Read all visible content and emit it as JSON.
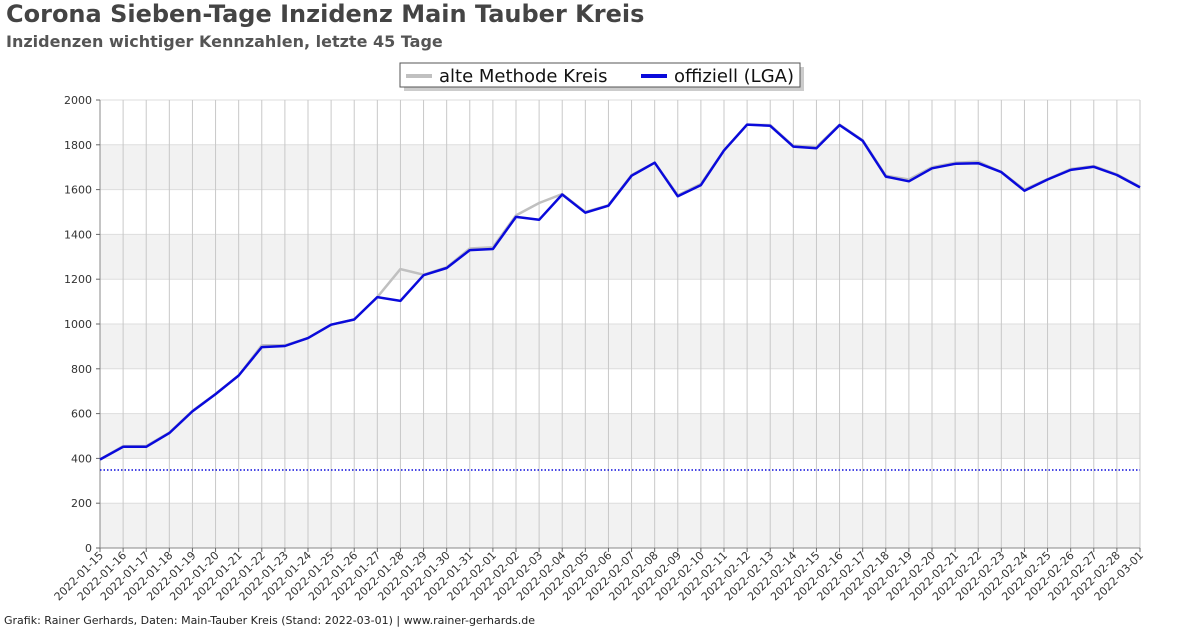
{
  "header": {
    "title": "Corona Sieben-Tage Inzidenz Main Tauber Kreis",
    "subtitle": "Inzidenzen wichtiger Kennzahlen, letzte 45 Tage"
  },
  "footer": {
    "text": "Grafik: Rainer Gerhards, Daten: Main-Tauber Kreis (Stand: 2022-03-01) | www.rainer-gerhards.de"
  },
  "chart_data": {
    "type": "line",
    "title": "Corona Sieben-Tage Inzidenz Main Tauber Kreis",
    "subtitle": "Inzidenzen wichtiger Kennzahlen, letzte 45 Tage",
    "xlabel": "",
    "ylabel": "",
    "ylim": [
      0,
      2000
    ],
    "yticks": [
      0,
      200,
      400,
      600,
      800,
      1000,
      1200,
      1400,
      1600,
      1800,
      2000
    ],
    "grid": true,
    "legend_position": "top-center",
    "categories": [
      "2022-01-15",
      "2022-01-16",
      "2022-01-17",
      "2022-01-18",
      "2022-01-19",
      "2022-01-20",
      "2022-01-21",
      "2022-01-22",
      "2022-01-23",
      "2022-01-24",
      "2022-01-25",
      "2022-01-26",
      "2022-01-27",
      "2022-01-28",
      "2022-01-29",
      "2022-01-30",
      "2022-01-31",
      "2022-02-01",
      "2022-02-02",
      "2022-02-03",
      "2022-02-04",
      "2022-02-05",
      "2022-02-06",
      "2022-02-07",
      "2022-02-08",
      "2022-02-09",
      "2022-02-10",
      "2022-02-11",
      "2022-02-12",
      "2022-02-13",
      "2022-02-14",
      "2022-02-15",
      "2022-02-16",
      "2022-02-17",
      "2022-02-18",
      "2022-02-19",
      "2022-02-20",
      "2022-02-21",
      "2022-02-22",
      "2022-02-23",
      "2022-02-24",
      "2022-02-25",
      "2022-02-26",
      "2022-02-27",
      "2022-02-28",
      "2022-03-01"
    ],
    "series": [
      {
        "name": "alte Methode Kreis",
        "color": "#c0c0c0",
        "values": [
          395,
          455,
          455,
          515,
          612,
          688,
          770,
          905,
          905,
          937,
          997,
          1020,
          1120,
          1245,
          1220,
          1253,
          1337,
          1343,
          1485,
          1540,
          1580,
          1500,
          1530,
          1665,
          1720,
          1575,
          1625,
          1775,
          1890,
          1888,
          1795,
          1790,
          1890,
          1820,
          1662,
          1645,
          1700,
          1720,
          1725,
          1678,
          1600,
          1647,
          1692,
          1705,
          1668,
          1612
        ]
      },
      {
        "name": "offiziell (LGA)",
        "color": "#0a0adb",
        "values": [
          395,
          452,
          452,
          513,
          610,
          687,
          770,
          897,
          902,
          937,
          997,
          1020,
          1120,
          1103,
          1218,
          1250,
          1330,
          1335,
          1478,
          1465,
          1578,
          1497,
          1528,
          1662,
          1720,
          1570,
          1620,
          1775,
          1890,
          1885,
          1792,
          1785,
          1888,
          1818,
          1658,
          1637,
          1695,
          1715,
          1718,
          1678,
          1595,
          1645,
          1688,
          1702,
          1665,
          1610
        ]
      }
    ],
    "reference_line": {
      "value": 348,
      "color": "#0a0adb",
      "style": "dotted"
    }
  }
}
